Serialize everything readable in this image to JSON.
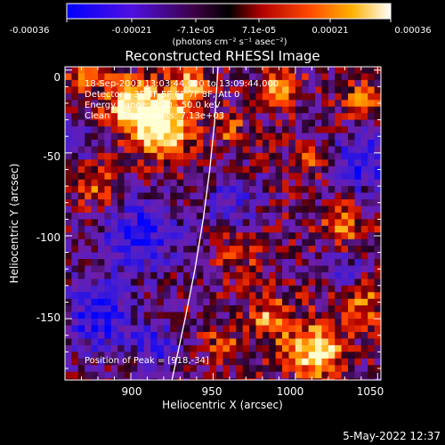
{
  "chart_data": {
    "type": "heatmap",
    "title": "Reconstructed RHESSI Image",
    "xlabel": "Heliocentric X (arcsec)",
    "ylabel": "Heliocentric Y (arcsec)",
    "xlim": [
      860,
      1052
    ],
    "ylim": [
      -187,
      2
    ],
    "x_ticks": [
      "900",
      "950",
      "1000",
      "1050"
    ],
    "y_ticks": [
      "0",
      "-50",
      "-100",
      "-150"
    ],
    "colorbar": {
      "tick_labels": [
        "-0.00036",
        "-0.00021",
        "-7.1e-05",
        "7.1e-05",
        "0.00021",
        "0.00036"
      ],
      "unit_label": "(photons cm⁻² s⁻¹ asec⁻²)",
      "range": [
        -0.00036,
        0.00036
      ],
      "colors": [
        "#0000ff",
        "#7a00d8",
        "#000000",
        "#ff2000",
        "#ff9a00",
        "#ffffff"
      ]
    },
    "annotations": {
      "time_range": "18-Sep-2003 13:03:44.000 to 13:09:44.000",
      "detectors": "Detectors: 3F 4F 5F 6F 7F 8F, Att 0",
      "energy_range": "Energy Range: 25.0 - 50.0 keV",
      "clean_counts": "Clean    Total counts: 7.13e+03",
      "peak": "Position of Peak = [918,-34]"
    },
    "limb_curve": [
      [
        953,
        2
      ],
      [
        951,
        -30
      ],
      [
        948,
        -60
      ],
      [
        944,
        -90
      ],
      [
        939,
        -120
      ],
      [
        933,
        -150
      ],
      [
        925,
        -187
      ]
    ],
    "footer_date": "5-May-2022 12:37"
  }
}
